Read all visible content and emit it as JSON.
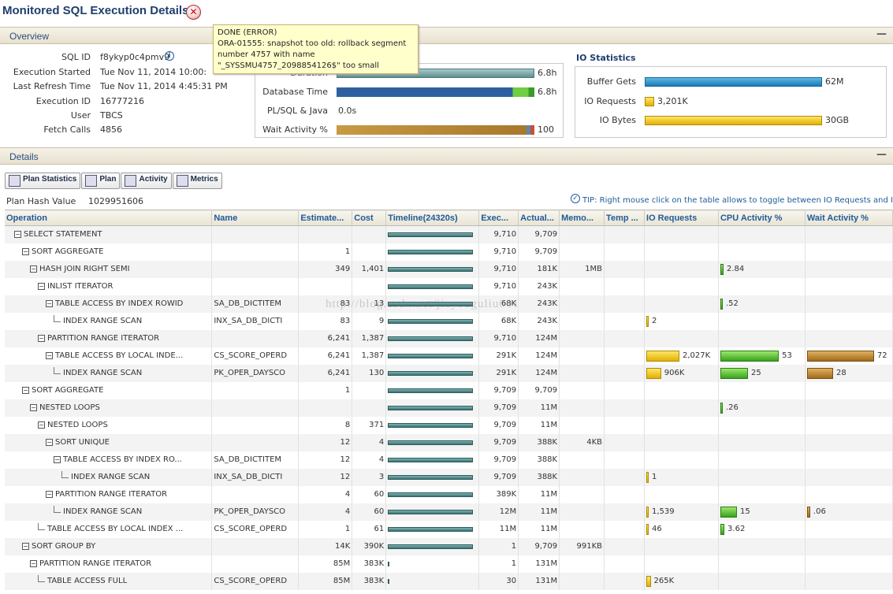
{
  "page": {
    "title": "Monitored SQL Execution Details"
  },
  "overview": {
    "header": "Overview",
    "labels": {
      "sqlid": "SQL ID",
      "started": "Execution Started",
      "refresh": "Last Refresh Time",
      "execid": "Execution ID",
      "user": "User",
      "fetch": "Fetch Calls"
    },
    "values": {
      "sqlid": "f8ykyp0c4pmv9",
      "started": "Tue Nov 11, 2014 10:00:",
      "refresh": "Tue Nov 11, 2014 4:45:31 PM",
      "execid": "16777216",
      "user": "TBCS",
      "fetch": "4856"
    }
  },
  "time_stats": {
    "rows": [
      {
        "label": "Duration",
        "value": "6.8h"
      },
      {
        "label": "Database Time",
        "value": "6.8h"
      },
      {
        "label": "PL/SQL & Java",
        "value": "0.0s"
      },
      {
        "label": "Wait Activity %",
        "value": "100"
      }
    ]
  },
  "io_stats": {
    "title": "IO Statistics",
    "rows": [
      {
        "label": "Buffer Gets",
        "value": "62M"
      },
      {
        "label": "IO Requests",
        "value": "3,201K"
      },
      {
        "label": "IO Bytes",
        "value": "30GB"
      }
    ]
  },
  "tooltip": {
    "line1": "DONE (ERROR)",
    "line2": "ORA-01555: snapshot too old: rollback segment",
    "line3": "number 4757 with name",
    "line4": "\"_SYSSMU4757_2098854126$\" too small"
  },
  "details": {
    "header": "Details",
    "tabs": [
      "Plan Statistics",
      "Plan",
      "Activity",
      "Metrics"
    ],
    "plan_hash_label": "Plan Hash Value",
    "plan_hash": "1029951606",
    "tip": "TIP: Right mouse click on the table allows to toggle between IO Requests and IO Bytes"
  },
  "watermark": "http://blog.csdn.net/jiayouguliu001",
  "table": {
    "columns": [
      "Operation",
      "Name",
      "Estimate...",
      "Cost",
      "Timeline(24320s)",
      "Exec...",
      "Actual...",
      "Memo...",
      "Temp ...",
      "IO Requests",
      "CPU Activity %",
      "Wait Activity %"
    ],
    "rows": [
      {
        "depth": 0,
        "node": "expand",
        "op": "SELECT STATEMENT",
        "name": "",
        "est": "",
        "cost": "",
        "tl": [
          0,
          1
        ],
        "exec": "9,710",
        "act": "9,709",
        "mem": "",
        "io": "",
        "iow": 0,
        "cpu": "",
        "cpuw": 0,
        "wait": "",
        "waitw": 0
      },
      {
        "depth": 1,
        "node": "expand",
        "op": "SORT AGGREGATE",
        "name": "",
        "est": "1",
        "cost": "",
        "tl": [
          0,
          1
        ],
        "exec": "9,710",
        "act": "9,709",
        "mem": "",
        "io": "",
        "iow": 0,
        "cpu": "",
        "cpuw": 0,
        "wait": "",
        "waitw": 0
      },
      {
        "depth": 2,
        "node": "expand",
        "op": "HASH JOIN RIGHT SEMI",
        "name": "",
        "est": "349",
        "cost": "1,401",
        "tl": [
          0,
          1
        ],
        "exec": "9,710",
        "act": "181K",
        "mem": "1MB",
        "io": "",
        "iow": 0,
        "cpu": "2.84",
        "cpuw": 2.84,
        "wait": "",
        "waitw": 0
      },
      {
        "depth": 3,
        "node": "expand",
        "op": "INLIST ITERATOR",
        "name": "",
        "est": "",
        "cost": "",
        "tl": [
          0,
          1
        ],
        "exec": "9,710",
        "act": "243K",
        "mem": "",
        "io": "",
        "iow": 0,
        "cpu": "",
        "cpuw": 0,
        "wait": "",
        "waitw": 0
      },
      {
        "depth": 4,
        "node": "expand",
        "op": "TABLE ACCESS BY INDEX ROWID",
        "name": "SA_DB_DICTITEM",
        "est": "83",
        "cost": "13",
        "tl": [
          0,
          1
        ],
        "exec": "68K",
        "act": "243K",
        "mem": "",
        "io": "",
        "iow": 0,
        "cpu": ".52",
        "cpuw": 0.52,
        "wait": "",
        "waitw": 0
      },
      {
        "depth": 5,
        "node": "leaf",
        "op": "INDEX RANGE SCAN",
        "name": "INX_SA_DB_DICTI",
        "est": "83",
        "cost": "9",
        "tl": [
          0,
          1
        ],
        "exec": "68K",
        "act": "243K",
        "mem": "",
        "io": "2",
        "iow": 2,
        "cpu": "",
        "cpuw": 0,
        "wait": "",
        "waitw": 0
      },
      {
        "depth": 3,
        "node": "expand",
        "op": "PARTITION RANGE ITERATOR",
        "name": "",
        "est": "6,241",
        "cost": "1,387",
        "tl": [
          0,
          1
        ],
        "exec": "9,710",
        "act": "124M",
        "mem": "",
        "io": "",
        "iow": 0,
        "cpu": "",
        "cpuw": 0,
        "wait": "",
        "waitw": 0
      },
      {
        "depth": 4,
        "node": "expand",
        "op": "TABLE ACCESS BY LOCAL INDE...",
        "name": "CS_SCORE_OPERD",
        "est": "6,241",
        "cost": "1,387",
        "tl": [
          0,
          1
        ],
        "exec": "291K",
        "act": "124M",
        "mem": "",
        "io": "2,027K",
        "iow": 2027,
        "cpu": "53",
        "cpuw": 53,
        "wait": "72",
        "waitw": 72
      },
      {
        "depth": 5,
        "node": "leaf",
        "op": "INDEX RANGE SCAN",
        "name": "PK_OPER_DAYSCO",
        "est": "6,241",
        "cost": "130",
        "tl": [
          0,
          1
        ],
        "exec": "291K",
        "act": "124M",
        "mem": "",
        "io": "906K",
        "iow": 906,
        "cpu": "25",
        "cpuw": 25,
        "wait": "28",
        "waitw": 28
      },
      {
        "depth": 1,
        "node": "expand",
        "op": "SORT AGGREGATE",
        "name": "",
        "est": "1",
        "cost": "",
        "tl": [
          0,
          1
        ],
        "exec": "9,709",
        "act": "9,709",
        "mem": "",
        "io": "",
        "iow": 0,
        "cpu": "",
        "cpuw": 0,
        "wait": "",
        "waitw": 0
      },
      {
        "depth": 2,
        "node": "expand",
        "op": "NESTED LOOPS",
        "name": "",
        "est": "",
        "cost": "",
        "tl": [
          0,
          1
        ],
        "exec": "9,709",
        "act": "11M",
        "mem": "",
        "io": "",
        "iow": 0,
        "cpu": ".26",
        "cpuw": 0.26,
        "wait": "",
        "waitw": 0
      },
      {
        "depth": 3,
        "node": "expand",
        "op": "NESTED LOOPS",
        "name": "",
        "est": "8",
        "cost": "371",
        "tl": [
          0,
          1
        ],
        "exec": "9,709",
        "act": "11M",
        "mem": "",
        "io": "",
        "iow": 0,
        "cpu": "",
        "cpuw": 0,
        "wait": "",
        "waitw": 0
      },
      {
        "depth": 4,
        "node": "expand",
        "op": "SORT UNIQUE",
        "name": "",
        "est": "12",
        "cost": "4",
        "tl": [
          0,
          1
        ],
        "exec": "9,709",
        "act": "388K",
        "mem": "4KB",
        "io": "",
        "iow": 0,
        "cpu": "",
        "cpuw": 0,
        "wait": "",
        "waitw": 0
      },
      {
        "depth": 5,
        "node": "expand",
        "op": "TABLE ACCESS BY INDEX RO...",
        "name": "SA_DB_DICTITEM",
        "est": "12",
        "cost": "4",
        "tl": [
          0,
          1
        ],
        "exec": "9,709",
        "act": "388K",
        "mem": "",
        "io": "",
        "iow": 0,
        "cpu": "",
        "cpuw": 0,
        "wait": "",
        "waitw": 0
      },
      {
        "depth": 6,
        "node": "leaf",
        "op": "INDEX RANGE SCAN",
        "name": "INX_SA_DB_DICTI",
        "est": "12",
        "cost": "3",
        "tl": [
          0,
          1
        ],
        "exec": "9,709",
        "act": "388K",
        "mem": "",
        "io": "1",
        "iow": 1,
        "cpu": "",
        "cpuw": 0,
        "wait": "",
        "waitw": 0
      },
      {
        "depth": 4,
        "node": "expand",
        "op": "PARTITION RANGE ITERATOR",
        "name": "",
        "est": "4",
        "cost": "60",
        "tl": [
          0,
          1
        ],
        "exec": "389K",
        "act": "11M",
        "mem": "",
        "io": "",
        "iow": 0,
        "cpu": "",
        "cpuw": 0,
        "wait": "",
        "waitw": 0
      },
      {
        "depth": 5,
        "node": "leaf",
        "op": "INDEX RANGE SCAN",
        "name": "PK_OPER_DAYSCO",
        "est": "4",
        "cost": "60",
        "tl": [
          0,
          1
        ],
        "exec": "12M",
        "act": "11M",
        "mem": "",
        "io": "1,539",
        "iow": 1.5,
        "cpu": "15",
        "cpuw": 15,
        "wait": ".06",
        "waitw": 0.06
      },
      {
        "depth": 3,
        "node": "leaf",
        "op": "TABLE ACCESS BY LOCAL INDEX ...",
        "name": "CS_SCORE_OPERD",
        "est": "1",
        "cost": "61",
        "tl": [
          0,
          1
        ],
        "exec": "11M",
        "act": "11M",
        "mem": "",
        "io": "46",
        "iow": 1,
        "cpu": "3.62",
        "cpuw": 3.62,
        "wait": "",
        "waitw": 0
      },
      {
        "depth": 1,
        "node": "expand",
        "op": "SORT GROUP BY",
        "name": "",
        "est": "14K",
        "cost": "390K",
        "tl": [
          0,
          1
        ],
        "exec": "1",
        "act": "9,709",
        "mem": "991KB",
        "io": "",
        "iow": 0,
        "cpu": "",
        "cpuw": 0,
        "wait": "",
        "waitw": 0
      },
      {
        "depth": 2,
        "node": "expand",
        "op": "PARTITION RANGE ITERATOR",
        "name": "",
        "est": "85M",
        "cost": "383K",
        "tl": [
          0,
          0.02
        ],
        "exec": "1",
        "act": "131M",
        "mem": "",
        "io": "",
        "iow": 0,
        "cpu": "",
        "cpuw": 0,
        "wait": "",
        "waitw": 0
      },
      {
        "depth": 3,
        "node": "leaf",
        "op": "TABLE ACCESS FULL",
        "name": "CS_SCORE_OPERD",
        "est": "85M",
        "cost": "383K",
        "tl": [
          0,
          0.02
        ],
        "exec": "30",
        "act": "131M",
        "mem": "",
        "io": "265K",
        "iow": 265,
        "cpu": "",
        "cpuw": 0,
        "wait": "",
        "waitw": 0
      }
    ]
  }
}
